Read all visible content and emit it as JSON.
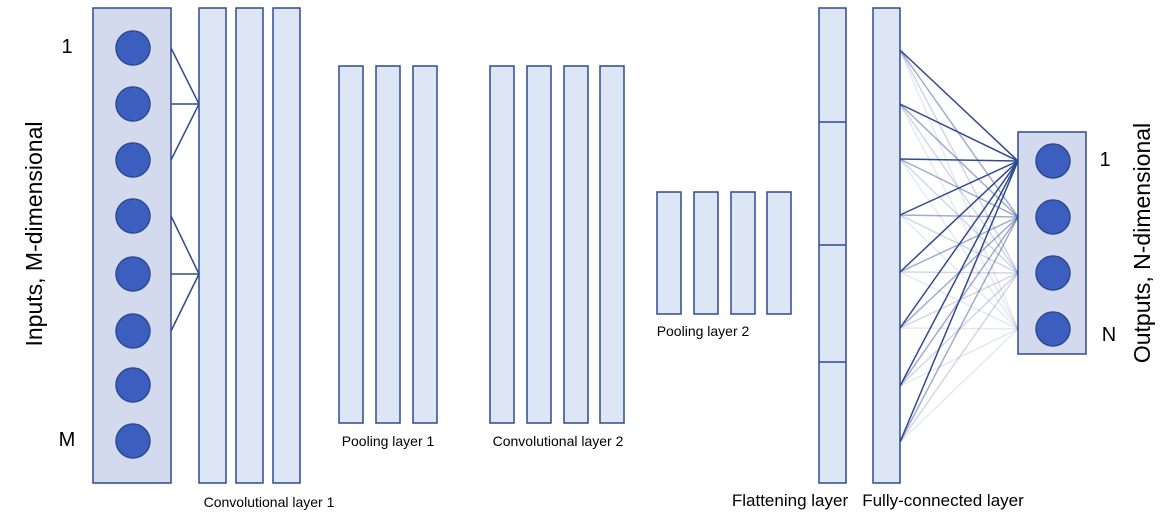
{
  "labels": {
    "inputs_axis": "Inputs, M-dimensional",
    "input_first": "1",
    "input_last": "M",
    "outputs_axis": "Outputs, N-dimensional",
    "output_first": "1",
    "output_last": "N",
    "conv1": "Convolutional layer 1",
    "pool1": "Pooling layer 1",
    "conv2": "Convolutional layer 2",
    "pool2": "Pooling layer 2",
    "flatten": "Flattening layer",
    "fc": "Fully-connected layer"
  },
  "colors": {
    "stroke": "#2f4a8f",
    "fill_light": "#dce6f4",
    "fill_box": "#d4daee",
    "node": "#3c5fbf"
  }
}
